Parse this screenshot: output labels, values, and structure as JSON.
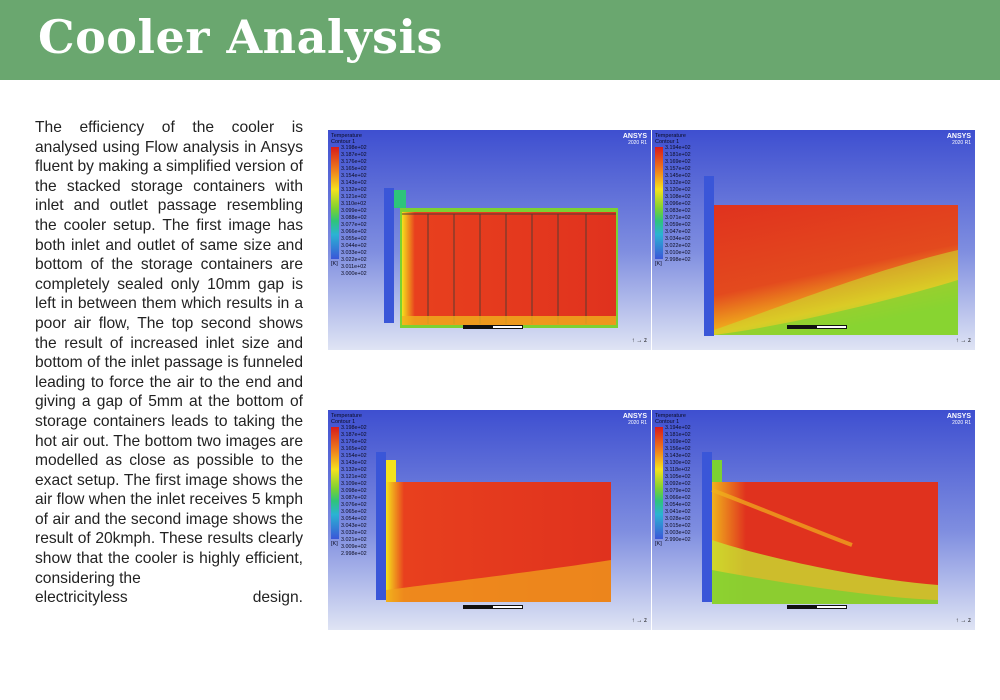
{
  "header": {
    "title": "Cooler Analysis"
  },
  "body": {
    "paragraph": "The efficiency of the cooler is analysed using Flow analysis in Ansys fluent by making a simplified version of the stacked storage containers with inlet and outlet passage resembling the cooler setup. The first image has both inlet and outlet of same size and bottom of the storage containers are completely sealed only 10mm gap is left in between them which results in a poor air flow, The top second shows the result of increased inlet size and bottom of the inlet passage is funneled leading to force the air to the end and giving a gap of 5mm at the bottom of storage containers leads to taking the hot air out. The bottom two images are modelled as close as possible to the exact setup. The first image shows the air flow when the inlet receives 5 kmph of air and the second image shows the result of 20kmph. These results clearly show that the cooler is highly efficient, considering the",
    "last_line": "electricityless design."
  },
  "figures": [
    {
      "legend_title": "Temperature",
      "legend_subtitle": "Contour 1",
      "unit": "[K]",
      "brand": "ANSYS",
      "version": "2020 R1",
      "values": [
        "3.198e+02",
        "3.187e+02",
        "3.176e+02",
        "3.165e+02",
        "3.154e+02",
        "3.143e+02",
        "3.132e+02",
        "3.121e+02",
        "3.110e+02",
        "3.099e+02",
        "3.088e+02",
        "3.077e+02",
        "3.066e+02",
        "3.055e+02",
        "3.044e+02",
        "3.033e+02",
        "3.022e+02",
        "3.011e+02",
        "3.000e+02"
      ]
    },
    {
      "legend_title": "Temperature",
      "legend_subtitle": "Contour 1",
      "unit": "[K]",
      "brand": "ANSYS",
      "version": "2020 R1",
      "values": [
        "3.194e+02",
        "3.181e+02",
        "3.169e+02",
        "3.157e+02",
        "3.145e+02",
        "3.132e+02",
        "3.120e+02",
        "3.108e+02",
        "3.096e+02",
        "3.083e+02",
        "3.071e+02",
        "3.059e+02",
        "3.047e+02",
        "3.034e+02",
        "3.022e+02",
        "3.010e+02",
        "2.998e+02"
      ]
    },
    {
      "legend_title": "Temperature",
      "legend_subtitle": "Contour 1",
      "unit": "[K]",
      "brand": "ANSYS",
      "version": "2020 R1",
      "values": [
        "3.198e+02",
        "3.187e+02",
        "3.176e+02",
        "3.165e+02",
        "3.154e+02",
        "3.143e+02",
        "3.132e+02",
        "3.121e+02",
        "3.109e+02",
        "3.098e+02",
        "3.087e+02",
        "3.076e+02",
        "3.065e+02",
        "3.054e+02",
        "3.043e+02",
        "3.032e+02",
        "3.021e+02",
        "3.009e+02",
        "2.998e+02"
      ]
    },
    {
      "legend_title": "Temperature",
      "legend_subtitle": "Contour 1",
      "unit": "[K]",
      "brand": "ANSYS",
      "version": "2020 R1",
      "values": [
        "3.194e+02",
        "3.181e+02",
        "3.169e+02",
        "3.156e+02",
        "3.143e+02",
        "3.130e+02",
        "3.118e+02",
        "3.105e+02",
        "3.092e+02",
        "3.079e+02",
        "3.066e+02",
        "3.054e+02",
        "3.041e+02",
        "3.028e+02",
        "3.015e+02",
        "3.003e+02",
        "2.990e+02"
      ]
    }
  ],
  "colors": {
    "banner": "#6aa76f",
    "hot": "#e0321e",
    "warm": "#f5c21c",
    "cool": "#7cd132",
    "cold": "#3a56d8"
  }
}
